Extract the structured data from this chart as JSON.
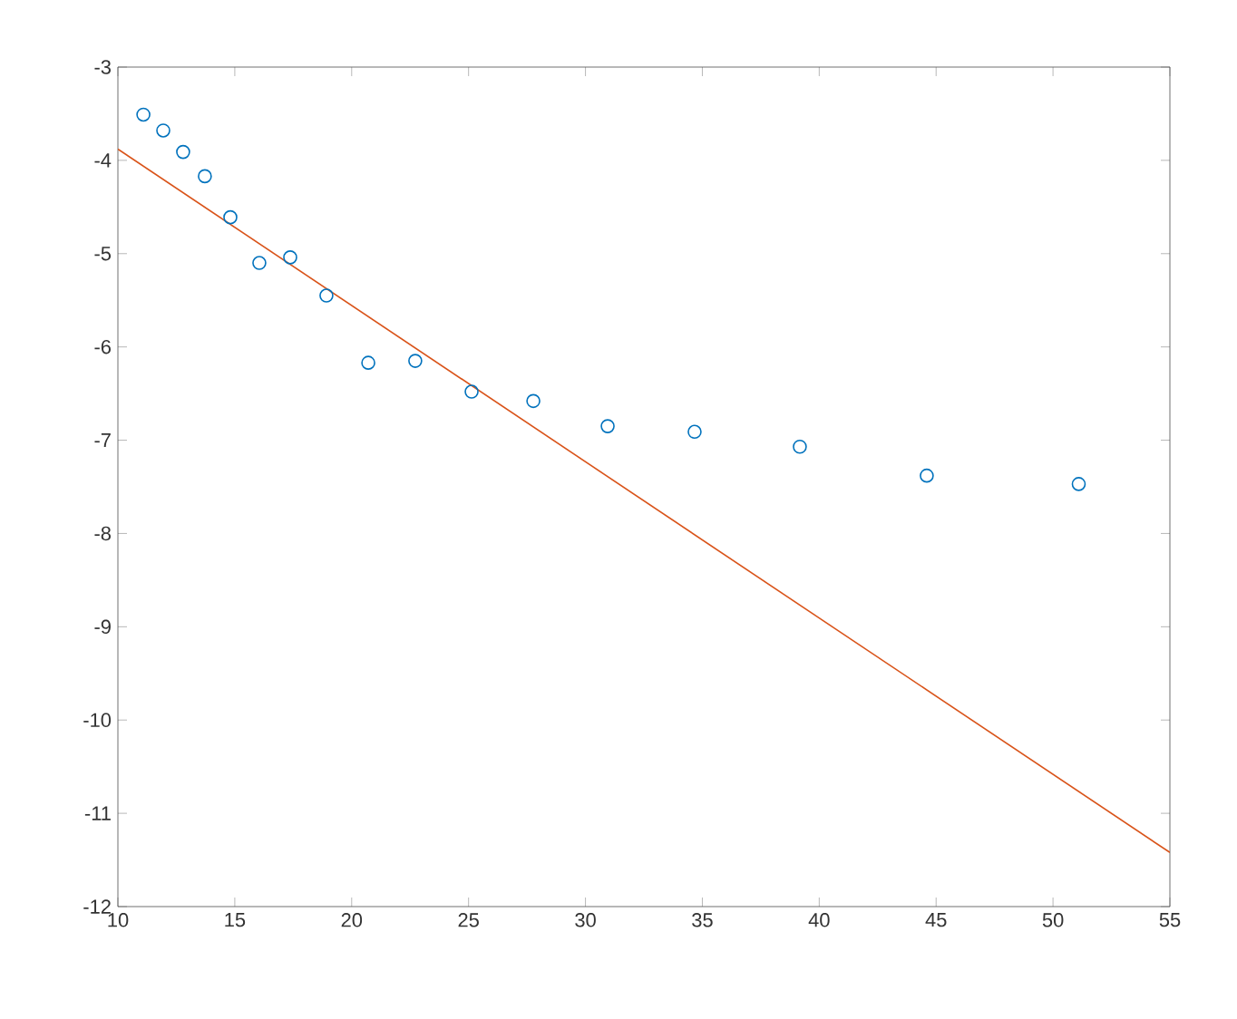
{
  "chart_data": {
    "type": "scatter",
    "xlim": [
      10,
      55
    ],
    "ylim": [
      -12,
      -3
    ],
    "xticks": [
      10,
      15,
      20,
      25,
      30,
      35,
      40,
      45,
      50,
      55
    ],
    "yticks": [
      -12,
      -11,
      -10,
      -9,
      -8,
      -7,
      -6,
      -5,
      -4,
      -3
    ],
    "grid": false,
    "series": [
      {
        "color": "#0072bd",
        "marker": "circle",
        "x": [
          11.09,
          11.94,
          12.79,
          13.72,
          14.81,
          16.05,
          17.37,
          18.92,
          20.71,
          22.72,
          25.13,
          27.77,
          30.95,
          34.67,
          39.17,
          44.6,
          51.1
        ],
        "values": [
          -3.51,
          -3.68,
          -3.91,
          -4.17,
          -4.61,
          -5.1,
          -5.04,
          -5.45,
          -6.17,
          -6.15,
          -6.48,
          -6.58,
          -6.85,
          -6.91,
          -7.07,
          -7.38,
          -7.47
        ]
      },
      {
        "type": "line",
        "color": "#d95319",
        "marker": "none",
        "line_style": "solid",
        "x": [
          10,
          55
        ],
        "values": [
          -3.88,
          -11.42
        ]
      }
    ]
  }
}
